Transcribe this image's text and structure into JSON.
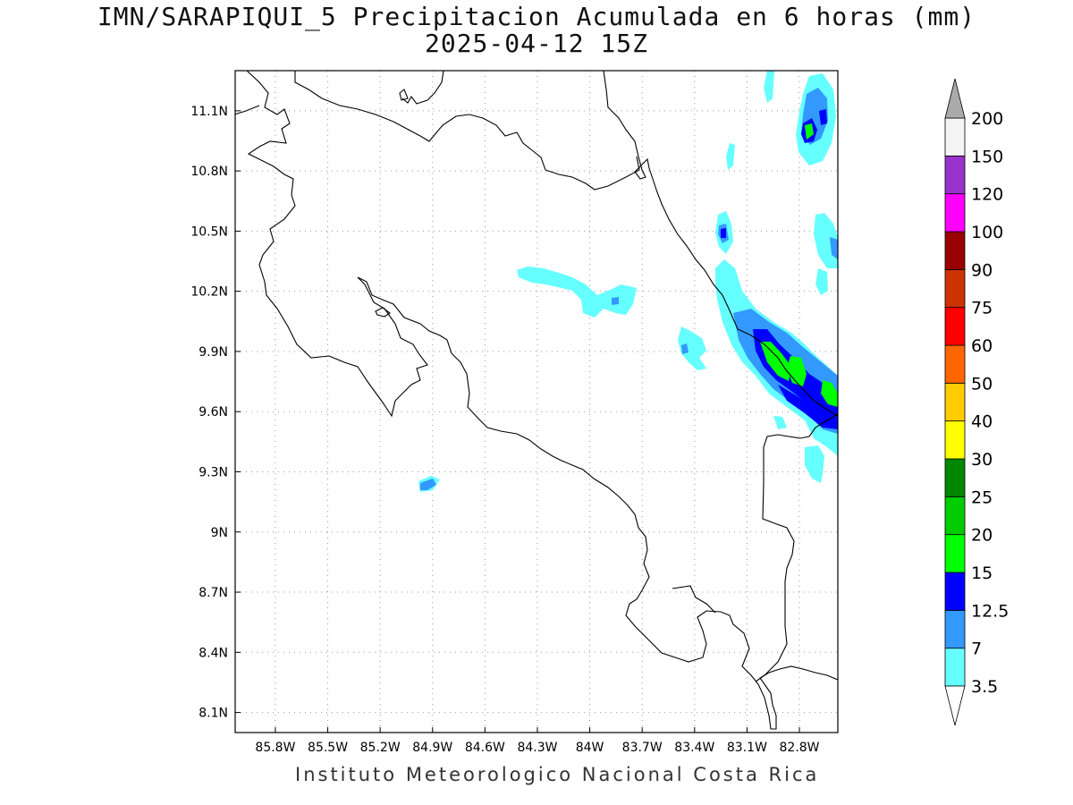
{
  "title_line1": "IMN/SARAPIQUI_5 Precipitacion Acumulada en 6 horas (mm)",
  "title_line2": "2025-04-12 15Z",
  "footer": "Instituto Meteorologico Nacional Costa Rica",
  "map": {
    "lon_range": [
      -86.03,
      -82.58
    ],
    "lat_range": [
      8.0,
      11.3
    ],
    "lon_ticks": [
      {
        "lon": -85.8,
        "label": "85.8W"
      },
      {
        "lon": -85.5,
        "label": "85.5W"
      },
      {
        "lon": -85.2,
        "label": "85.2W"
      },
      {
        "lon": -84.9,
        "label": "84.9W"
      },
      {
        "lon": -84.6,
        "label": "84.6W"
      },
      {
        "lon": -84.3,
        "label": "84.3W"
      },
      {
        "lon": -84.0,
        "label": "84W"
      },
      {
        "lon": -83.7,
        "label": "83.7W"
      },
      {
        "lon": -83.4,
        "label": "83.4W"
      },
      {
        "lon": -83.1,
        "label": "83.1W"
      },
      {
        "lon": -82.8,
        "label": "82.8W"
      }
    ],
    "lat_ticks": [
      {
        "lat": 11.1,
        "label": "11.1N"
      },
      {
        "lat": 10.8,
        "label": "10.8N"
      },
      {
        "lat": 10.5,
        "label": "10.5N"
      },
      {
        "lat": 10.2,
        "label": "10.2N"
      },
      {
        "lat": 9.9,
        "label": "9.9N"
      },
      {
        "lat": 9.6,
        "label": "9.6N"
      },
      {
        "lat": 9.3,
        "label": "9.3N"
      },
      {
        "lat": 9.0,
        "label": "9N"
      },
      {
        "lat": 8.7,
        "label": "8.7N"
      },
      {
        "lat": 8.4,
        "label": "8.4N"
      },
      {
        "lat": 8.1,
        "label": "8.1N"
      }
    ],
    "grid": true
  },
  "colorbar": {
    "labels": [
      "3.5",
      "7",
      "12.5",
      "15",
      "20",
      "25",
      "30",
      "40",
      "50",
      "60",
      "75",
      "90",
      "100",
      "120",
      "150",
      "200"
    ],
    "colors": [
      "#66ffff",
      "#3399ff",
      "#0000ff",
      "#00ff00",
      "#00cc00",
      "#008800",
      "#ffff00",
      "#ffcc00",
      "#ff6600",
      "#ff0000",
      "#cc3300",
      "#990000",
      "#ff00ff",
      "#9933cc",
      "#f5f5f5"
    ],
    "over_color": "#aaaaaa",
    "under_color": "#ffffff"
  }
}
